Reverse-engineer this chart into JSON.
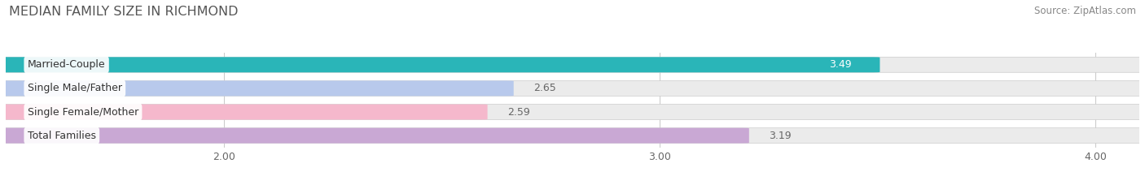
{
  "title": "MEDIAN FAMILY SIZE IN RICHMOND",
  "source": "Source: ZipAtlas.com",
  "categories": [
    "Married-Couple",
    "Single Male/Father",
    "Single Female/Mother",
    "Total Families"
  ],
  "values": [
    3.49,
    2.65,
    2.59,
    3.19
  ],
  "bar_colors": [
    "#2ab5b8",
    "#b8c9ec",
    "#f5b8cc",
    "#c9a8d4"
  ],
  "value_label_colors": [
    "#ffffff",
    "#666666",
    "#666666",
    "#666666"
  ],
  "xlim_data": [
    1.5,
    4.1
  ],
  "xmin": 2.0,
  "xmax": 4.0,
  "xticks": [
    2.0,
    3.0,
    4.0
  ],
  "xtick_labels": [
    "2.00",
    "3.00",
    "4.00"
  ],
  "bar_height": 0.62,
  "background_color": "#ffffff",
  "bar_bg_color": "#ebebeb",
  "grid_color": "#cccccc",
  "value_label_fontsize": 9,
  "label_fontsize": 9,
  "title_color": "#555555",
  "source_color": "#888888"
}
